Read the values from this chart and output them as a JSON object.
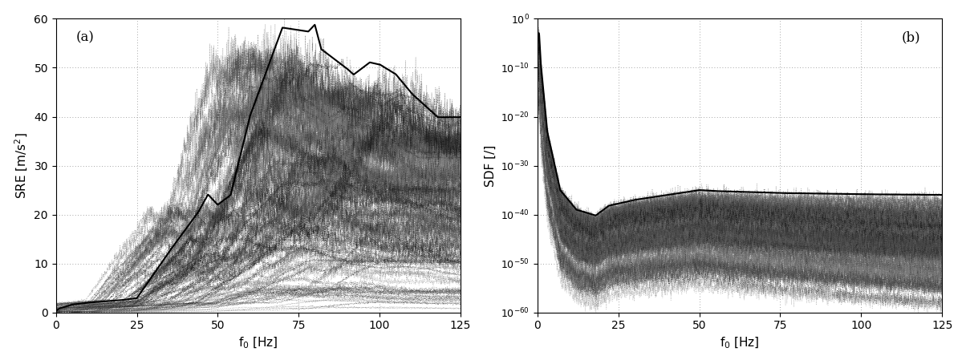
{
  "figsize": [
    12.04,
    4.54
  ],
  "dpi": 100,
  "background_color": "#ffffff",
  "panel_a": {
    "label": "(a)",
    "xlabel": "f$_0$ [Hz]",
    "ylabel": "SRE [m/s$^2$]",
    "xlim": [
      0,
      125
    ],
    "ylim": [
      0,
      60
    ],
    "xticks": [
      0,
      25,
      50,
      75,
      100,
      125
    ],
    "yticks": [
      0,
      10,
      20,
      30,
      40,
      50,
      60
    ],
    "grid_color": "#888888",
    "n_dotted_curves": 120,
    "envelope_color": "#000000"
  },
  "panel_b": {
    "label": "(b)",
    "xlabel": "f$_0$ [Hz]",
    "ylabel": "SDF [/]",
    "xlim": [
      0,
      125
    ],
    "ylim_exp": [
      -60,
      0
    ],
    "xticks": [
      0,
      25,
      50,
      75,
      100,
      125
    ],
    "ytick_exps": [
      0,
      -10,
      -20,
      -30,
      -40,
      -50,
      -60
    ],
    "grid_color": "#888888",
    "n_dotted_curves": 120,
    "envelope_color": "#000000"
  }
}
